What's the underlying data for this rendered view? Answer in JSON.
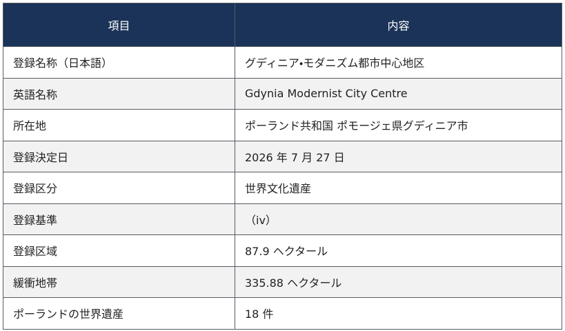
{
  "table": {
    "headers": [
      "項目",
      "内容"
    ],
    "rows": [
      [
        "登録名称（日本語）",
        "グディニア・モダニズム都市中心地区"
      ],
      [
        "英語名称",
        "Gdynia Modernist City Centre"
      ],
      [
        "所在地",
        "ポーランド共和国 ポモージェ県グディニア市"
      ],
      [
        "登録決定日",
        "2026 年 7 月 27 日"
      ],
      [
        "登録区分",
        "世界文化遺産"
      ],
      [
        "登録基準",
        "（iv）"
      ],
      [
        "登録区域",
        "87.9 ヘクタール"
      ],
      [
        "緩衝地帯",
        "335.88 ヘクタール"
      ],
      [
        "ポーランドの世界遺産",
        "18 件"
      ]
    ]
  }
}
